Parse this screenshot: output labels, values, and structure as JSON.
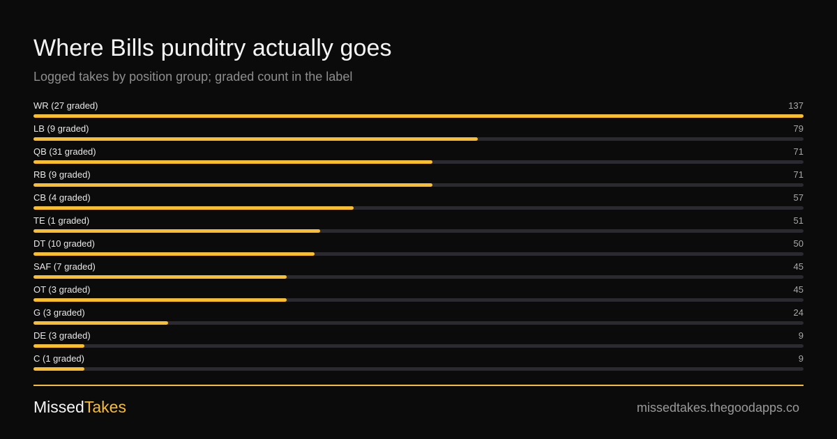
{
  "header": {
    "title": "Where Bills punditry actually goes",
    "subtitle": "Logged takes by position group; graded count in the label"
  },
  "colors": {
    "accent": "#f9be30",
    "track": "#2a2a30",
    "background": "#0b0b0b"
  },
  "chart_data": {
    "type": "bar",
    "orientation": "horizontal",
    "categories": [
      "WR (27 graded)",
      "LB (9 graded)",
      "QB (31 graded)",
      "RB (9 graded)",
      "CB (4 graded)",
      "TE (1 graded)",
      "DT (10 graded)",
      "SAF (7 graded)",
      "OT (3 graded)",
      "G (3 graded)",
      "DE (3 graded)",
      "C (1 graded)"
    ],
    "values": [
      137,
      79,
      71,
      71,
      57,
      51,
      50,
      45,
      45,
      24,
      9,
      9
    ],
    "xlim": [
      0,
      137
    ],
    "grid": false,
    "legend": "none"
  },
  "footer": {
    "brand_part1": "Missed",
    "brand_part2": "Takes",
    "site": "missedtakes.thegoodapps.co"
  }
}
